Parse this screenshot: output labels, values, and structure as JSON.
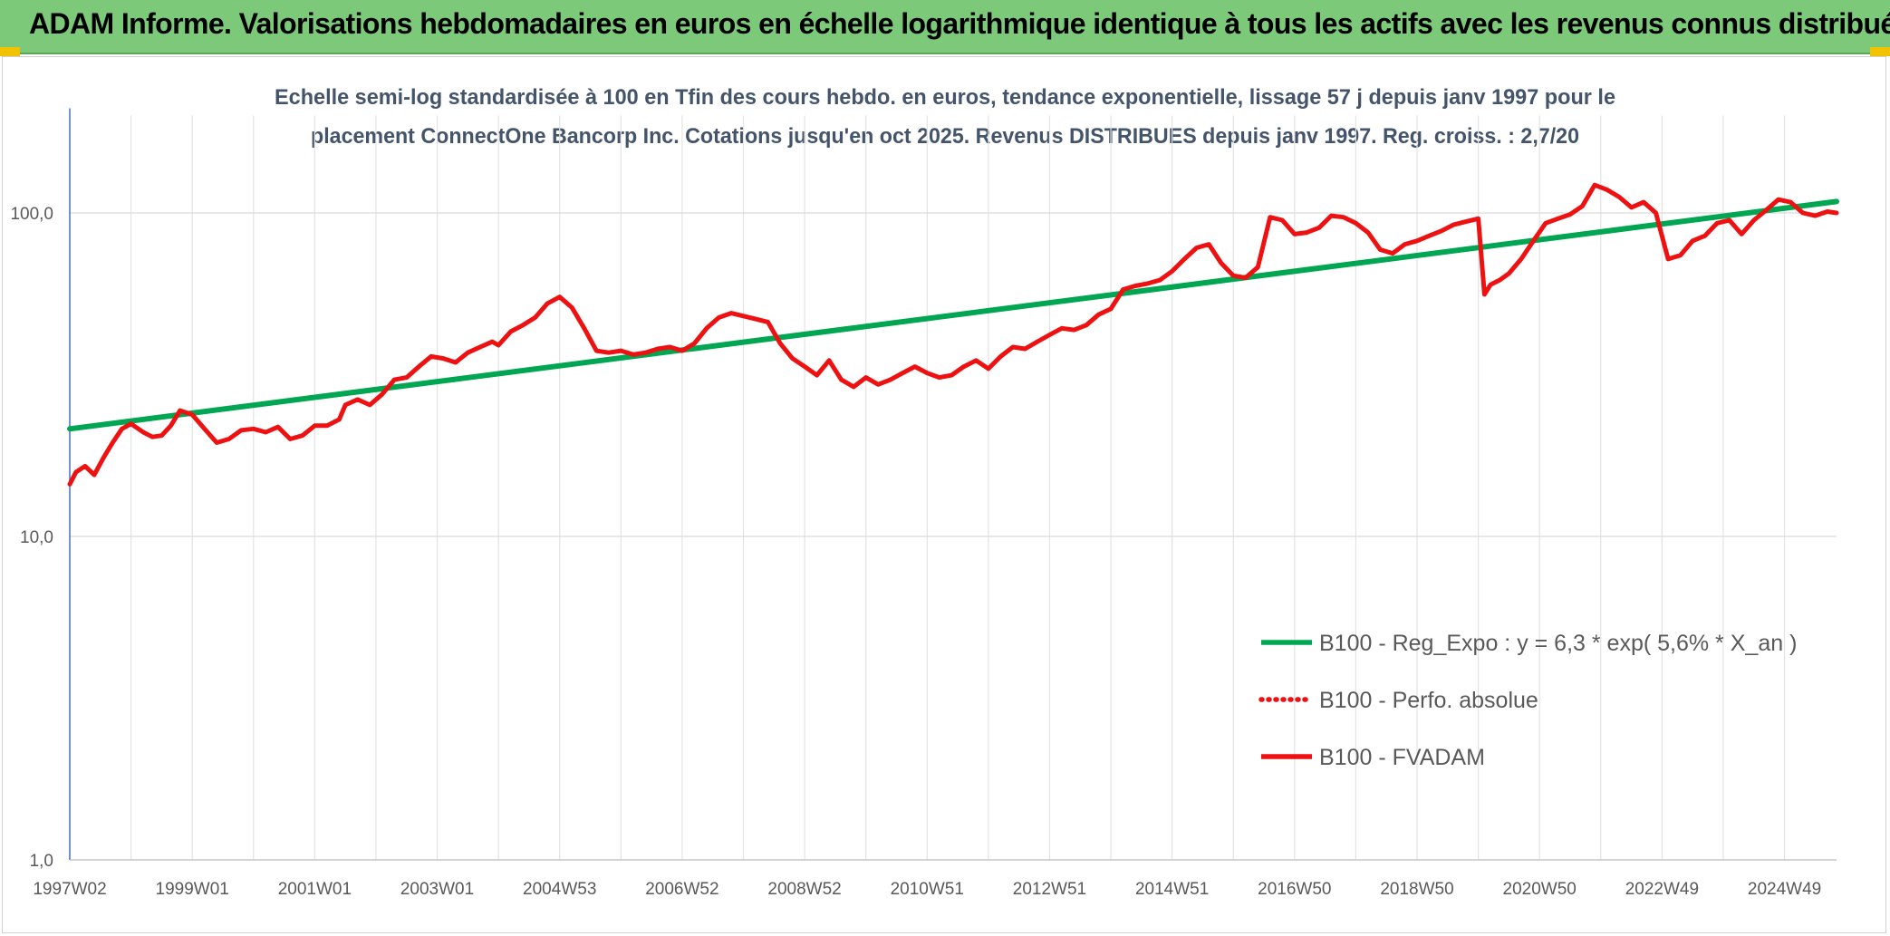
{
  "banner": {
    "title": "ADAM Informe. Valorisations hebdomadaires en euros en échelle logarithmique identique à tous les actifs avec les revenus connus distribués"
  },
  "chart_data": {
    "type": "line",
    "title_line1": "Echelle semi-log standardisée à 100 en Tfin des cours hebdo. en euros, tendance exponentielle, lissage 57 j depuis janv 1997 pour le",
    "title_line2": "placement ConnectOne Bancorp Inc. Cotations jusqu'en oct 2025. Revenus DISTRIBUES depuis janv 1997. Reg. croiss. : 2,7/20",
    "y_scale": "log",
    "ylim": [
      1,
      200
    ],
    "xlim": [
      1997.0,
      2025.85
    ],
    "y_ticks": [
      {
        "value": 1,
        "label": "1,0"
      },
      {
        "value": 10,
        "label": "10,0"
      },
      {
        "value": 100,
        "label": "100,0"
      }
    ],
    "x_ticks": [
      {
        "value": 1997.0,
        "label": "1997W02"
      },
      {
        "value": 1999.0,
        "label": "1999W01"
      },
      {
        "value": 2001.0,
        "label": "2001W01"
      },
      {
        "value": 2003.0,
        "label": "2003W01"
      },
      {
        "value": 2005.0,
        "label": "2004W53"
      },
      {
        "value": 2007.0,
        "label": "2006W52"
      },
      {
        "value": 2009.0,
        "label": "2008W52"
      },
      {
        "value": 2011.0,
        "label": "2010W51"
      },
      {
        "value": 2013.0,
        "label": "2012W51"
      },
      {
        "value": 2015.0,
        "label": "2014W51"
      },
      {
        "value": 2017.0,
        "label": "2016W50"
      },
      {
        "value": 2019.0,
        "label": "2018W50"
      },
      {
        "value": 2021.0,
        "label": "2020W50"
      },
      {
        "value": 2023.0,
        "label": "2022W49"
      },
      {
        "value": 2025.0,
        "label": "2024W49"
      }
    ],
    "grid": "vertical and horizontal",
    "legend_position": "bottom-right",
    "series": [
      {
        "name": "B100 - Reg_Expo : y = 6,3 * exp( 5,6% *  X_an )",
        "color": "#00a651",
        "style": "solid",
        "x": [
          1997.0,
          2025.85
        ],
        "y": [
          21.5,
          108.5
        ]
      },
      {
        "name": "B100 - Perfo. absolue",
        "color": "#ee1111",
        "style": "dotted",
        "x": [],
        "y": []
      },
      {
        "name": "B100 - FVADAM",
        "color": "#ee1111",
        "style": "solid",
        "x": [
          1997.0,
          1997.1,
          1997.25,
          1997.4,
          1997.55,
          1997.7,
          1997.85,
          1998.0,
          1998.2,
          1998.35,
          1998.5,
          1998.65,
          1998.8,
          1999.0,
          1999.2,
          1999.4,
          1999.6,
          1999.8,
          2000.0,
          2000.2,
          2000.4,
          2000.6,
          2000.8,
          2001.0,
          2001.2,
          2001.4,
          2001.5,
          2001.7,
          2001.9,
          2002.1,
          2002.3,
          2002.5,
          2002.7,
          2002.9,
          2003.1,
          2003.3,
          2003.5,
          2003.7,
          2003.9,
          2004.0,
          2004.2,
          2004.4,
          2004.6,
          2004.8,
          2005.0,
          2005.2,
          2005.4,
          2005.6,
          2005.8,
          2006.0,
          2006.2,
          2006.4,
          2006.6,
          2006.8,
          2007.0,
          2007.2,
          2007.4,
          2007.6,
          2007.8,
          2008.0,
          2008.2,
          2008.4,
          2008.6,
          2008.8,
          2009.0,
          2009.2,
          2009.4,
          2009.6,
          2009.8,
          2010.0,
          2010.2,
          2010.4,
          2010.6,
          2010.8,
          2011.0,
          2011.2,
          2011.4,
          2011.6,
          2011.8,
          2012.0,
          2012.2,
          2012.4,
          2012.6,
          2012.8,
          2013.0,
          2013.2,
          2013.4,
          2013.6,
          2013.8,
          2014.0,
          2014.2,
          2014.4,
          2014.6,
          2014.8,
          2015.0,
          2015.2,
          2015.4,
          2015.6,
          2015.8,
          2016.0,
          2016.2,
          2016.4,
          2016.6,
          2016.8,
          2017.0,
          2017.2,
          2017.4,
          2017.6,
          2017.8,
          2018.0,
          2018.2,
          2018.4,
          2018.6,
          2018.8,
          2019.0,
          2019.2,
          2019.4,
          2019.6,
          2019.8,
          2020.0,
          2020.1,
          2020.2,
          2020.35,
          2020.5,
          2020.7,
          2020.9,
          2021.1,
          2021.3,
          2021.5,
          2021.7,
          2021.9,
          2022.1,
          2022.3,
          2022.5,
          2022.7,
          2022.9,
          2023.1,
          2023.3,
          2023.5,
          2023.7,
          2023.9,
          2024.1,
          2024.3,
          2024.5,
          2024.7,
          2024.9,
          2025.1,
          2025.3,
          2025.5,
          2025.7,
          2025.85
        ],
        "y": [
          14.5,
          15.8,
          16.5,
          15.5,
          17.5,
          19.5,
          21.5,
          22.3,
          21.0,
          20.3,
          20.5,
          22.0,
          24.5,
          23.8,
          21.5,
          19.5,
          20.0,
          21.3,
          21.5,
          21.0,
          21.8,
          20.0,
          20.5,
          22.0,
          22.0,
          23.0,
          25.5,
          26.5,
          25.5,
          27.5,
          30.5,
          31.0,
          33.5,
          36.0,
          35.5,
          34.5,
          37.0,
          38.5,
          40.0,
          39.0,
          43.0,
          45.0,
          47.5,
          52.5,
          55.0,
          51.0,
          44.0,
          37.5,
          37.0,
          37.5,
          36.5,
          37.0,
          38.0,
          38.5,
          37.5,
          39.5,
          44.0,
          47.5,
          49.0,
          48.0,
          47.0,
          46.0,
          39.5,
          35.5,
          33.5,
          31.5,
          35.0,
          30.5,
          29.0,
          31.0,
          29.5,
          30.5,
          32.0,
          33.5,
          32.0,
          31.0,
          31.5,
          33.5,
          35.0,
          33.0,
          36.0,
          38.5,
          38.0,
          40.0,
          42.0,
          44.0,
          43.5,
          45.0,
          48.5,
          50.5,
          58.0,
          59.5,
          60.5,
          62.0,
          66.0,
          72.0,
          78.0,
          80.0,
          70.0,
          64.0,
          63.0,
          68.0,
          97.0,
          95.0,
          86.0,
          87.0,
          90.0,
          98.0,
          97.0,
          93.0,
          87.0,
          77.0,
          75.0,
          80.0,
          82.0,
          85.0,
          88.0,
          92.0,
          94.0,
          96.0,
          56.0,
          60.0,
          62.0,
          65.0,
          72.0,
          82.0,
          93.0,
          96.0,
          99.0,
          105.0,
          122.0,
          118.0,
          112.0,
          104.0,
          108.0,
          100.0,
          72.0,
          74.0,
          82.0,
          85.0,
          93.0,
          95.0,
          86.0,
          95.0,
          102.0,
          110.0,
          108.0,
          100.0,
          98.0,
          101.0,
          100.0
        ]
      }
    ]
  }
}
